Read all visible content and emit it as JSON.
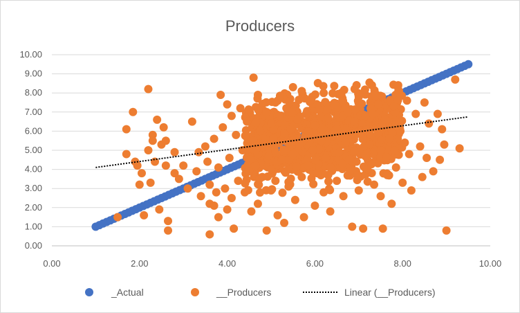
{
  "chart_data": {
    "type": "scatter",
    "title": "Producers",
    "xlabel": "",
    "ylabel": "",
    "xlim": [
      0,
      10
    ],
    "ylim": [
      0,
      10
    ],
    "x_ticks": [
      "0.00",
      "2.00",
      "4.00",
      "6.00",
      "8.00",
      "10.00"
    ],
    "y_ticks": [
      "0.00",
      "1.00",
      "2.00",
      "3.00",
      "4.00",
      "5.00",
      "6.00",
      "7.00",
      "8.00",
      "9.00",
      "10.00"
    ],
    "grid": true,
    "legend_position": "bottom",
    "colors": {
      "actual": "#4472C4",
      "producers": "#ED7D31",
      "trend": "#000000"
    },
    "series": [
      {
        "name": "_Actual",
        "kind": "markers",
        "description": "points on the line y = x from 1.0 to 9.5",
        "points": [
          [
            1.0,
            1.0
          ],
          [
            1.25,
            1.25
          ],
          [
            1.5,
            1.5
          ],
          [
            1.75,
            1.75
          ],
          [
            2.0,
            2.0
          ],
          [
            2.25,
            2.25
          ],
          [
            2.5,
            2.5
          ],
          [
            2.75,
            2.75
          ],
          [
            3.0,
            3.0
          ],
          [
            3.25,
            3.25
          ],
          [
            3.5,
            3.5
          ],
          [
            3.75,
            3.75
          ],
          [
            4.0,
            4.0
          ],
          [
            4.25,
            4.25
          ],
          [
            4.5,
            4.5
          ],
          [
            4.75,
            4.75
          ],
          [
            5.0,
            5.0
          ],
          [
            5.25,
            5.25
          ],
          [
            5.5,
            5.5
          ],
          [
            5.75,
            5.75
          ],
          [
            6.0,
            6.0
          ],
          [
            6.25,
            6.25
          ],
          [
            6.5,
            6.5
          ],
          [
            6.75,
            6.75
          ],
          [
            7.0,
            7.0
          ],
          [
            7.25,
            7.25
          ],
          [
            7.5,
            7.5
          ],
          [
            7.75,
            7.75
          ],
          [
            8.0,
            8.0
          ],
          [
            8.25,
            8.25
          ],
          [
            8.5,
            8.5
          ],
          [
            8.75,
            8.75
          ],
          [
            9.0,
            9.0
          ],
          [
            9.25,
            9.25
          ],
          [
            9.5,
            9.5
          ]
        ]
      },
      {
        "name": "__Producers",
        "kind": "markers",
        "points": [
          [
            1.5,
            1.5
          ],
          [
            1.7,
            6.1
          ],
          [
            1.7,
            4.8
          ],
          [
            1.85,
            7.0
          ],
          [
            1.9,
            4.4
          ],
          [
            1.95,
            4.2
          ],
          [
            2.0,
            3.2
          ],
          [
            2.05,
            3.8
          ],
          [
            2.1,
            1.6
          ],
          [
            2.2,
            8.2
          ],
          [
            2.2,
            5.0
          ],
          [
            2.25,
            3.3
          ],
          [
            2.3,
            5.8
          ],
          [
            2.3,
            5.5
          ],
          [
            2.35,
            4.4
          ],
          [
            2.4,
            6.6
          ],
          [
            2.45,
            1.9
          ],
          [
            2.5,
            5.3
          ],
          [
            2.55,
            6.2
          ],
          [
            2.6,
            5.5
          ],
          [
            2.6,
            4.2
          ],
          [
            2.65,
            1.3
          ],
          [
            2.65,
            0.8
          ],
          [
            2.8,
            3.8
          ],
          [
            2.8,
            4.9
          ],
          [
            2.9,
            3.5
          ],
          [
            3.0,
            4.2
          ],
          [
            3.1,
            3.0
          ],
          [
            3.2,
            6.5
          ],
          [
            3.3,
            3.9
          ],
          [
            3.35,
            4.9
          ],
          [
            3.4,
            2.6
          ],
          [
            3.5,
            5.2
          ],
          [
            3.55,
            4.4
          ],
          [
            3.6,
            2.2
          ],
          [
            3.6,
            3.2
          ],
          [
            3.6,
            0.6
          ],
          [
            3.7,
            5.6
          ],
          [
            3.7,
            2.1
          ],
          [
            3.75,
            2.8
          ],
          [
            3.8,
            1.5
          ],
          [
            3.8,
            4.1
          ],
          [
            3.85,
            7.9
          ],
          [
            3.9,
            6.2
          ],
          [
            3.95,
            3.0
          ],
          [
            4.0,
            7.4
          ],
          [
            4.0,
            1.9
          ],
          [
            4.05,
            4.6
          ],
          [
            4.1,
            2.5
          ],
          [
            4.1,
            6.8
          ],
          [
            4.15,
            0.9
          ],
          [
            4.2,
            5.8
          ],
          [
            4.25,
            3.4
          ],
          [
            4.3,
            7.2
          ],
          [
            4.35,
            5.0
          ],
          [
            4.4,
            2.8
          ],
          [
            4.45,
            6.5
          ],
          [
            4.5,
            3.9
          ],
          [
            4.55,
            1.8
          ],
          [
            4.6,
            8.8
          ],
          [
            4.6,
            5.5
          ],
          [
            4.65,
            4.2
          ],
          [
            4.7,
            7.9
          ],
          [
            4.7,
            2.2
          ],
          [
            4.75,
            6.0
          ],
          [
            4.8,
            3.6
          ],
          [
            4.85,
            5.2
          ],
          [
            4.9,
            0.8
          ],
          [
            4.9,
            7.0
          ],
          [
            4.95,
            4.7
          ],
          [
            5.0,
            2.9
          ],
          [
            5.0,
            6.4
          ],
          [
            5.05,
            5.6
          ],
          [
            5.1,
            3.4
          ],
          [
            5.1,
            7.5
          ],
          [
            5.15,
            1.6
          ],
          [
            5.2,
            6.8
          ],
          [
            5.25,
            4.5
          ],
          [
            5.3,
            5.9
          ],
          [
            5.3,
            1.2
          ],
          [
            5.35,
            7.2
          ],
          [
            5.4,
            3.1
          ],
          [
            5.45,
            6.1
          ],
          [
            5.5,
            8.3
          ],
          [
            5.5,
            4.8
          ],
          [
            5.55,
            2.4
          ],
          [
            5.6,
            6.6
          ],
          [
            5.65,
            5.3
          ],
          [
            5.7,
            8.1
          ],
          [
            5.7,
            3.6
          ],
          [
            5.75,
            1.5
          ],
          [
            5.8,
            6.9
          ],
          [
            5.85,
            4.2
          ],
          [
            5.9,
            7.6
          ],
          [
            5.95,
            5.0
          ],
          [
            6.0,
            2.1
          ],
          [
            6.0,
            6.3
          ],
          [
            6.05,
            3.8
          ],
          [
            6.1,
            7.1
          ],
          [
            6.15,
            5.5
          ],
          [
            6.2,
            8.0
          ],
          [
            6.2,
            2.8
          ],
          [
            6.25,
            4.6
          ],
          [
            6.3,
            6.7
          ],
          [
            6.35,
            1.8
          ],
          [
            6.4,
            5.8
          ],
          [
            6.45,
            7.4
          ],
          [
            6.5,
            3.4
          ],
          [
            6.5,
            6.1
          ],
          [
            6.55,
            4.9
          ],
          [
            6.6,
            8.0
          ],
          [
            6.65,
            2.6
          ],
          [
            6.7,
            5.4
          ],
          [
            6.75,
            7.0
          ],
          [
            6.8,
            3.9
          ],
          [
            6.85,
            1.0
          ],
          [
            6.9,
            6.5
          ],
          [
            6.95,
            4.4
          ],
          [
            7.0,
            7.8
          ],
          [
            7.0,
            2.9
          ],
          [
            7.05,
            5.9
          ],
          [
            7.1,
            0.9
          ],
          [
            7.15,
            6.8
          ],
          [
            7.2,
            4.0
          ],
          [
            7.25,
            5.3
          ],
          [
            7.3,
            8.4
          ],
          [
            7.35,
            3.2
          ],
          [
            7.4,
            6.2
          ],
          [
            7.45,
            7.4
          ],
          [
            7.5,
            2.6
          ],
          [
            7.5,
            5.0
          ],
          [
            7.55,
            0.9
          ],
          [
            7.6,
            6.6
          ],
          [
            7.65,
            3.7
          ],
          [
            7.7,
            5.6
          ],
          [
            7.75,
            2.2
          ],
          [
            7.8,
            7.3
          ],
          [
            7.85,
            4.1
          ],
          [
            7.9,
            8.4
          ],
          [
            7.95,
            6.0
          ],
          [
            8.0,
            3.3
          ],
          [
            8.05,
            5.4
          ],
          [
            8.1,
            7.6
          ],
          [
            8.15,
            4.8
          ],
          [
            8.2,
            2.9
          ],
          [
            8.3,
            6.9
          ],
          [
            8.4,
            5.2
          ],
          [
            8.45,
            3.6
          ],
          [
            8.5,
            7.5
          ],
          [
            8.55,
            4.6
          ],
          [
            8.6,
            6.4
          ],
          [
            8.7,
            3.9
          ],
          [
            8.8,
            6.9
          ],
          [
            8.85,
            4.5
          ],
          [
            8.9,
            6.1
          ],
          [
            8.95,
            5.3
          ],
          [
            9.0,
            0.8
          ],
          [
            9.2,
            8.7
          ],
          [
            9.3,
            5.1
          ]
        ]
      },
      {
        "name": "Linear (__Producers)",
        "kind": "trendline",
        "points": [
          [
            1.0,
            4.1
          ],
          [
            9.5,
            6.75
          ]
        ]
      }
    ]
  },
  "legend": {
    "actual_label": "_Actual",
    "producers_label": "__Producers",
    "trend_label": "Linear (__Producers)"
  }
}
